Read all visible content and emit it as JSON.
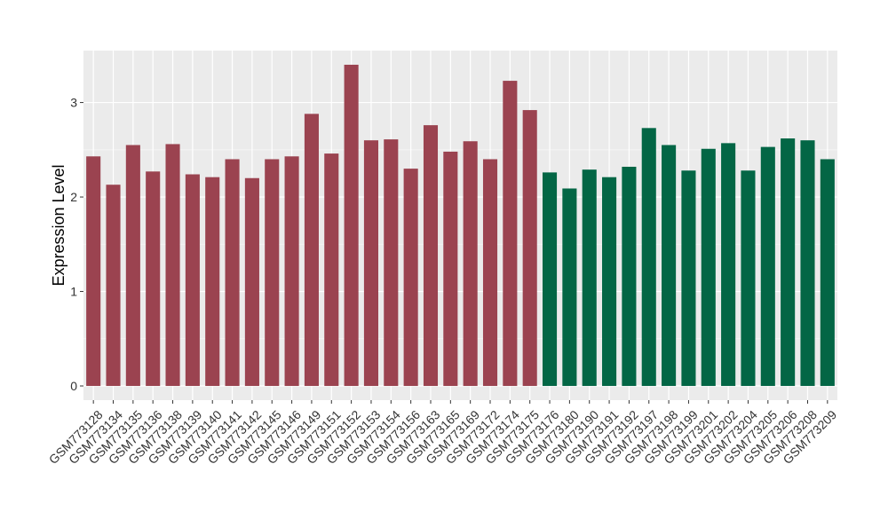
{
  "chart_data": {
    "type": "bar",
    "title": "",
    "xlabel": "",
    "ylabel": "Expression Level",
    "ylim": [
      -0.15,
      3.55
    ],
    "yticks": [
      0,
      1,
      2,
      3
    ],
    "grid": true,
    "legend": "none",
    "categories": [
      "GSM773128",
      "GSM773134",
      "GSM773135",
      "GSM773136",
      "GSM773138",
      "GSM773139",
      "GSM773140",
      "GSM773141",
      "GSM773142",
      "GSM773145",
      "GSM773146",
      "GSM773149",
      "GSM773151",
      "GSM773152",
      "GSM773153",
      "GSM773154",
      "GSM773156",
      "GSM773163",
      "GSM773165",
      "GSM773169",
      "GSM773172",
      "GSM773174",
      "GSM773175",
      "GSM773176",
      "GSM773180",
      "GSM773190",
      "GSM773191",
      "GSM773192",
      "GSM773197",
      "GSM773198",
      "GSM773199",
      "GSM773201",
      "GSM773202",
      "GSM773204",
      "GSM773205",
      "GSM773206",
      "GSM773208",
      "GSM773209"
    ],
    "values": [
      2.43,
      2.13,
      2.55,
      2.27,
      2.56,
      2.24,
      2.21,
      2.4,
      2.2,
      2.4,
      2.43,
      2.88,
      2.46,
      3.4,
      2.6,
      2.61,
      2.3,
      2.76,
      2.48,
      2.59,
      2.4,
      3.23,
      2.92,
      2.26,
      2.09,
      2.29,
      2.21,
      2.32,
      2.73,
      2.55,
      2.28,
      2.51,
      2.57,
      2.28,
      2.53,
      2.62,
      2.6,
      2.4
    ],
    "group_colors": {
      "group1": "#9b4350",
      "group2": "#036645"
    },
    "bar_groups": [
      "group1",
      "group1",
      "group1",
      "group1",
      "group1",
      "group1",
      "group1",
      "group1",
      "group1",
      "group1",
      "group1",
      "group1",
      "group1",
      "group1",
      "group1",
      "group1",
      "group1",
      "group1",
      "group1",
      "group1",
      "group1",
      "group1",
      "group1",
      "group2",
      "group2",
      "group2",
      "group2",
      "group2",
      "group2",
      "group2",
      "group2",
      "group2",
      "group2",
      "group2",
      "group2",
      "group2",
      "group2",
      "group2"
    ]
  }
}
